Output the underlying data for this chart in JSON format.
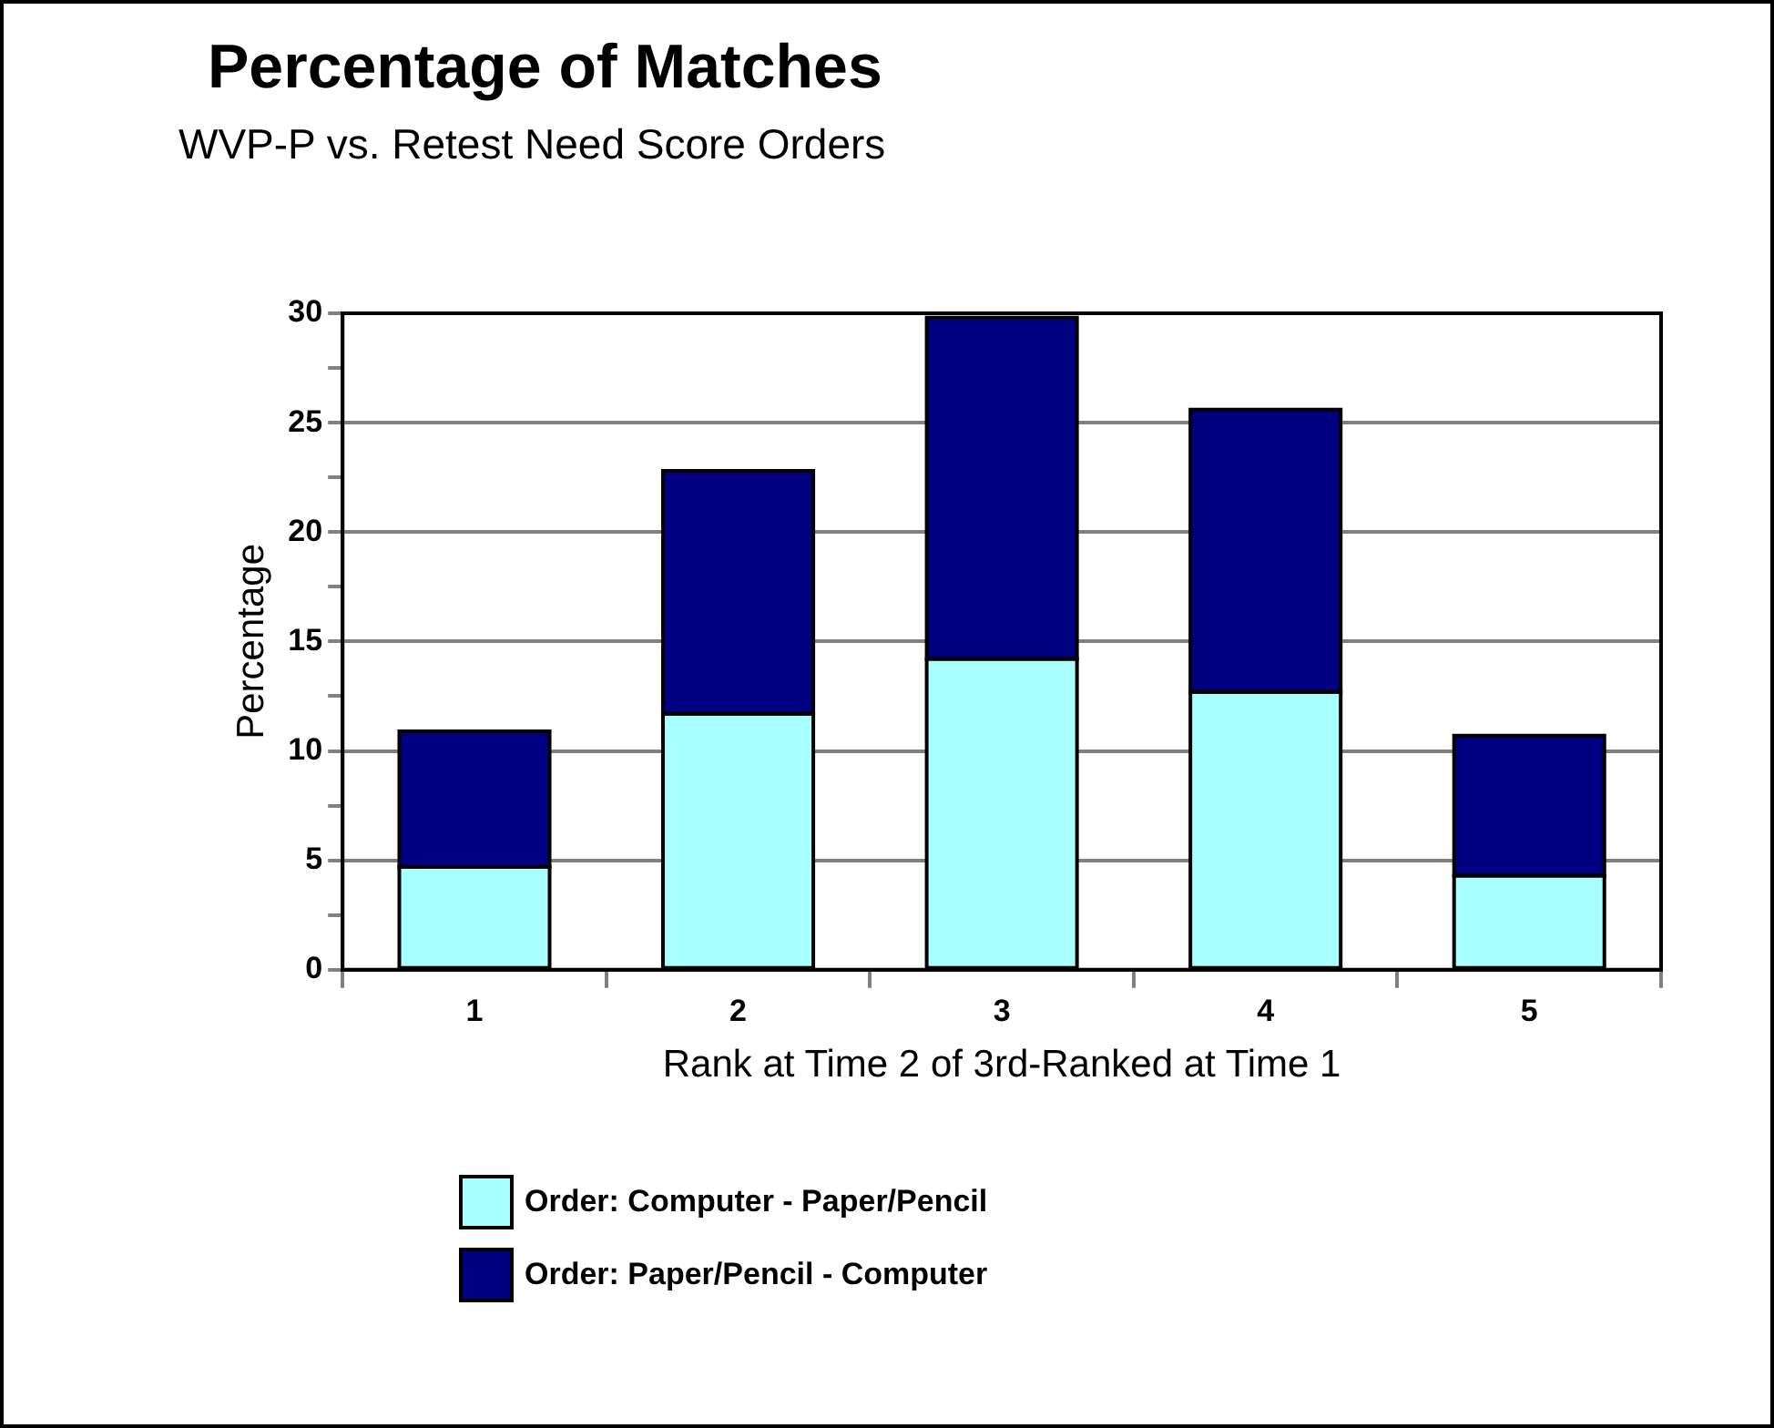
{
  "chart_data": {
    "type": "bar",
    "title": "Percentage of Matches",
    "subtitle": "WVP-P vs. Retest Need Score Orders",
    "xlabel": "Rank at Time 2 of 3rd-Ranked at Time 1",
    "ylabel": "Percentage",
    "categories": [
      "1",
      "2",
      "3",
      "4",
      "5"
    ],
    "stacked": true,
    "series": [
      {
        "name": "Order: Computer - Paper/Pencil",
        "color": "#aaffff",
        "values": [
          4.7,
          11.7,
          14.2,
          12.7,
          4.3
        ]
      },
      {
        "name": "Order: Paper/Pencil - Computer",
        "color": "#000080",
        "values": [
          6.2,
          11.1,
          15.6,
          12.9,
          6.4
        ]
      }
    ],
    "ylim": [
      0,
      30
    ],
    "yticks": [
      0,
      {
        "value": 2.5,
        "label": null
      },
      5,
      {
        "value": 7.5,
        "label": null
      },
      10,
      {
        "value": 12.5,
        "label": null
      },
      15,
      {
        "value": 17.5,
        "label": null
      },
      20,
      {
        "value": 22.5,
        "label": null
      },
      25,
      {
        "value": 27.5,
        "label": null
      },
      30
    ],
    "grid": "y",
    "legend": "bottom"
  }
}
